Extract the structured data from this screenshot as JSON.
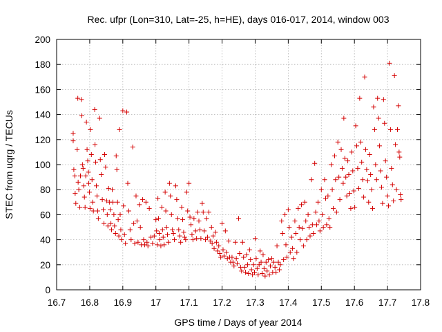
{
  "chart_data": {
    "type": "scatter",
    "title": "Rec. ufpr (Lon=310, Lat=-25, h=HE), days 016-017, 2014, window 003",
    "xlabel": "GPS time / Days of year 2014",
    "ylabel": "STEC from uqrg / TECUs",
    "xlim": [
      16.7,
      17.8
    ],
    "ylim": [
      0,
      200
    ],
    "xticks": [
      "16.7",
      "16.8",
      "16.9",
      "17",
      "17.1",
      "17.2",
      "17.3",
      "17.4",
      "17.5",
      "17.6",
      "17.7",
      "17.8"
    ],
    "yticks": [
      "0",
      "20",
      "40",
      "60",
      "80",
      "100",
      "120",
      "140",
      "160",
      "180",
      "200"
    ],
    "grid": true,
    "marker": "plus",
    "color": "#d40000",
    "points": [
      [
        16.75,
        125
      ],
      [
        16.75,
        119
      ],
      [
        16.752,
        96
      ],
      [
        16.755,
        91
      ],
      [
        16.756,
        77
      ],
      [
        16.758,
        69
      ],
      [
        16.762,
        112
      ],
      [
        16.764,
        153
      ],
      [
        16.765,
        86
      ],
      [
        16.767,
        80
      ],
      [
        16.77,
        66
      ],
      [
        16.772,
        91
      ],
      [
        16.775,
        152
      ],
      [
        16.776,
        139
      ],
      [
        16.778,
        100
      ],
      [
        16.78,
        97
      ],
      [
        16.782,
        83
      ],
      [
        16.784,
        74
      ],
      [
        16.786,
        66
      ],
      [
        16.788,
        91
      ],
      [
        16.79,
        134
      ],
      [
        16.792,
        112
      ],
      [
        16.794,
        103
      ],
      [
        16.796,
        94
      ],
      [
        16.797,
        85
      ],
      [
        16.799,
        78
      ],
      [
        16.801,
        65
      ],
      [
        16.802,
        128
      ],
      [
        16.805,
        108
      ],
      [
        16.807,
        88
      ],
      [
        16.809,
        70
      ],
      [
        16.811,
        63
      ],
      [
        16.815,
        144
      ],
      [
        16.816,
        116
      ],
      [
        16.818,
        102
      ],
      [
        16.82,
        83
      ],
      [
        16.822,
        75
      ],
      [
        16.824,
        63
      ],
      [
        16.826,
        57
      ],
      [
        16.83,
        137
      ],
      [
        16.832,
        104
      ],
      [
        16.835,
        92
      ],
      [
        16.838,
        72
      ],
      [
        16.841,
        64
      ],
      [
        16.843,
        53
      ],
      [
        16.845,
        108
      ],
      [
        16.848,
        98
      ],
      [
        16.851,
        71
      ],
      [
        16.853,
        60
      ],
      [
        16.855,
        51
      ],
      [
        16.857,
        81
      ],
      [
        16.86,
        70
      ],
      [
        16.862,
        64
      ],
      [
        16.864,
        53
      ],
      [
        16.866,
        48
      ],
      [
        16.868,
        80
      ],
      [
        16.87,
        70
      ],
      [
        16.873,
        60
      ],
      [
        16.875,
        51
      ],
      [
        16.878,
        45
      ],
      [
        16.88,
        107
      ],
      [
        16.882,
        96
      ],
      [
        16.884,
        70
      ],
      [
        16.886,
        56
      ],
      [
        16.888,
        43
      ],
      [
        16.89,
        128
      ],
      [
        16.892,
        60
      ],
      [
        16.894,
        48
      ],
      [
        16.896,
        40
      ],
      [
        16.9,
        143
      ],
      [
        16.902,
        67
      ],
      [
        16.905,
        44
      ],
      [
        16.908,
        37
      ],
      [
        16.912,
        142
      ],
      [
        16.915,
        85
      ],
      [
        16.918,
        63
      ],
      [
        16.922,
        48
      ],
      [
        16.925,
        40
      ],
      [
        16.93,
        114
      ],
      [
        16.933,
        53
      ],
      [
        16.936,
        37
      ],
      [
        16.94,
        75
      ],
      [
        16.943,
        55
      ],
      [
        16.946,
        38
      ],
      [
        16.95,
        68
      ],
      [
        16.953,
        50
      ],
      [
        16.956,
        36
      ],
      [
        16.96,
        72
      ],
      [
        16.963,
        40
      ],
      [
        16.966,
        36
      ],
      [
        16.97,
        70
      ],
      [
        16.973,
        38
      ],
      [
        16.976,
        35
      ],
      [
        16.98,
        65
      ],
      [
        16.985,
        42
      ],
      [
        16.99,
        37
      ],
      [
        16.995,
        43
      ],
      [
        17.0,
        56
      ],
      [
        17.002,
        47
      ],
      [
        17.004,
        36
      ],
      [
        17.006,
        73
      ],
      [
        17.008,
        57
      ],
      [
        17.01,
        45
      ],
      [
        17.012,
        40
      ],
      [
        17.015,
        35
      ],
      [
        17.018,
        66
      ],
      [
        17.02,
        48
      ],
      [
        17.022,
        42
      ],
      [
        17.025,
        36
      ],
      [
        17.028,
        78
      ],
      [
        17.03,
        63
      ],
      [
        17.032,
        50
      ],
      [
        17.035,
        44
      ],
      [
        17.038,
        38
      ],
      [
        17.041,
        85
      ],
      [
        17.044,
        75
      ],
      [
        17.047,
        60
      ],
      [
        17.05,
        48
      ],
      [
        17.053,
        45
      ],
      [
        17.056,
        40
      ],
      [
        17.06,
        83
      ],
      [
        17.063,
        72
      ],
      [
        17.066,
        57
      ],
      [
        17.069,
        48
      ],
      [
        17.072,
        43
      ],
      [
        17.075,
        38
      ],
      [
        17.078,
        66
      ],
      [
        17.081,
        56
      ],
      [
        17.084,
        46
      ],
      [
        17.087,
        42
      ],
      [
        17.09,
        40
      ],
      [
        17.093,
        78
      ],
      [
        17.096,
        63
      ],
      [
        17.1,
        85
      ],
      [
        17.103,
        58
      ],
      [
        17.106,
        52
      ],
      [
        17.109,
        44
      ],
      [
        17.112,
        40
      ],
      [
        17.115,
        57
      ],
      [
        17.12,
        47
      ],
      [
        17.123,
        41
      ],
      [
        17.126,
        62
      ],
      [
        17.13,
        55
      ],
      [
        17.133,
        48
      ],
      [
        17.136,
        41
      ],
      [
        17.14,
        69
      ],
      [
        17.143,
        62
      ],
      [
        17.146,
        47
      ],
      [
        17.15,
        40
      ],
      [
        17.153,
        57
      ],
      [
        17.156,
        42
      ],
      [
        17.16,
        62
      ],
      [
        17.164,
        39
      ],
      [
        17.168,
        50
      ],
      [
        17.17,
        37
      ],
      [
        17.173,
        43
      ],
      [
        17.176,
        33
      ],
      [
        17.18,
        46
      ],
      [
        17.183,
        38
      ],
      [
        17.186,
        31
      ],
      [
        17.19,
        35
      ],
      [
        17.193,
        29
      ],
      [
        17.196,
        26
      ],
      [
        17.2,
        53
      ],
      [
        17.203,
        32
      ],
      [
        17.206,
        27
      ],
      [
        17.21,
        47
      ],
      [
        17.213,
        30
      ],
      [
        17.216,
        25
      ],
      [
        17.22,
        39
      ],
      [
        17.223,
        26
      ],
      [
        17.226,
        22
      ],
      [
        17.23,
        26
      ],
      [
        17.233,
        22
      ],
      [
        17.236,
        19
      ],
      [
        17.24,
        38
      ],
      [
        17.243,
        25
      ],
      [
        17.246,
        21
      ],
      [
        17.25,
        57
      ],
      [
        17.253,
        29
      ],
      [
        17.256,
        18
      ],
      [
        17.259,
        15
      ],
      [
        17.262,
        38
      ],
      [
        17.265,
        26
      ],
      [
        17.268,
        18
      ],
      [
        17.271,
        14
      ],
      [
        17.274,
        28
      ],
      [
        17.277,
        20
      ],
      [
        17.28,
        13
      ],
      [
        17.283,
        32
      ],
      [
        17.286,
        24
      ],
      [
        17.289,
        16
      ],
      [
        17.292,
        12
      ],
      [
        17.295,
        20
      ],
      [
        17.298,
        14
      ],
      [
        17.3,
        41
      ],
      [
        17.303,
        25
      ],
      [
        17.306,
        17
      ],
      [
        17.309,
        12
      ],
      [
        17.312,
        20
      ],
      [
        17.315,
        31
      ],
      [
        17.318,
        22
      ],
      [
        17.321,
        13
      ],
      [
        17.324,
        28
      ],
      [
        17.327,
        17
      ],
      [
        17.33,
        11
      ],
      [
        17.333,
        22
      ],
      [
        17.336,
        15
      ],
      [
        17.34,
        24
      ],
      [
        17.343,
        12
      ],
      [
        17.346,
        19
      ],
      [
        17.35,
        25
      ],
      [
        17.353,
        14
      ],
      [
        17.356,
        22
      ],
      [
        17.36,
        18
      ],
      [
        17.363,
        14
      ],
      [
        17.366,
        35
      ],
      [
        17.37,
        22
      ],
      [
        17.373,
        16
      ],
      [
        17.376,
        20
      ],
      [
        17.38,
        55
      ],
      [
        17.383,
        45
      ],
      [
        17.386,
        24
      ],
      [
        17.39,
        60
      ],
      [
        17.393,
        36
      ],
      [
        17.396,
        26
      ],
      [
        17.4,
        64
      ],
      [
        17.403,
        50
      ],
      [
        17.406,
        30
      ],
      [
        17.41,
        42
      ],
      [
        17.413,
        33
      ],
      [
        17.416,
        25
      ],
      [
        17.42,
        55
      ],
      [
        17.423,
        45
      ],
      [
        17.426,
        30
      ],
      [
        17.43,
        65
      ],
      [
        17.433,
        50
      ],
      [
        17.436,
        40
      ],
      [
        17.44,
        68
      ],
      [
        17.443,
        49
      ],
      [
        17.446,
        35
      ],
      [
        17.45,
        70
      ],
      [
        17.453,
        55
      ],
      [
        17.456,
        40
      ],
      [
        17.46,
        60
      ],
      [
        17.463,
        50
      ],
      [
        17.466,
        43
      ],
      [
        17.47,
        88
      ],
      [
        17.473,
        52
      ],
      [
        17.476,
        45
      ],
      [
        17.48,
        101
      ],
      [
        17.483,
        62
      ],
      [
        17.486,
        52
      ],
      [
        17.49,
        70
      ],
      [
        17.493,
        55
      ],
      [
        17.496,
        47
      ],
      [
        17.5,
        80
      ],
      [
        17.503,
        60
      ],
      [
        17.506,
        50
      ],
      [
        17.51,
        88
      ],
      [
        17.513,
        73
      ],
      [
        17.516,
        52
      ],
      [
        17.52,
        75
      ],
      [
        17.523,
        57
      ],
      [
        17.526,
        50
      ],
      [
        17.53,
        100
      ],
      [
        17.533,
        80
      ],
      [
        17.536,
        65
      ],
      [
        17.54,
        107
      ],
      [
        17.543,
        88
      ],
      [
        17.546,
        62
      ],
      [
        17.55,
        118
      ],
      [
        17.553,
        90
      ],
      [
        17.556,
        72
      ],
      [
        17.56,
        112
      ],
      [
        17.563,
        97
      ],
      [
        17.566,
        85
      ],
      [
        17.568,
        137
      ],
      [
        17.571,
        105
      ],
      [
        17.574,
        90
      ],
      [
        17.577,
        75
      ],
      [
        17.58,
        103
      ],
      [
        17.583,
        92
      ],
      [
        17.586,
        77
      ],
      [
        17.589,
        65
      ],
      [
        17.592,
        110
      ],
      [
        17.595,
        95
      ],
      [
        17.598,
        79
      ],
      [
        17.601,
        66
      ],
      [
        17.604,
        131
      ],
      [
        17.607,
        115
      ],
      [
        17.61,
        97
      ],
      [
        17.613,
        81
      ],
      [
        17.616,
        153
      ],
      [
        17.619,
        118
      ],
      [
        17.622,
        102
      ],
      [
        17.625,
        88
      ],
      [
        17.628,
        74
      ],
      [
        17.631,
        170
      ],
      [
        17.634,
        112
      ],
      [
        17.637,
        96
      ],
      [
        17.64,
        87
      ],
      [
        17.643,
        70
      ],
      [
        17.646,
        108
      ],
      [
        17.649,
        92
      ],
      [
        17.652,
        80
      ],
      [
        17.655,
        65
      ],
      [
        17.658,
        146
      ],
      [
        17.661,
        128
      ],
      [
        17.664,
        100
      ],
      [
        17.667,
        88
      ],
      [
        17.67,
        153
      ],
      [
        17.673,
        137
      ],
      [
        17.676,
        115
      ],
      [
        17.679,
        95
      ],
      [
        17.682,
        82
      ],
      [
        17.685,
        69
      ],
      [
        17.688,
        152
      ],
      [
        17.691,
        133
      ],
      [
        17.694,
        103
      ],
      [
        17.697,
        90
      ],
      [
        17.7,
        75
      ],
      [
        17.703,
        67
      ],
      [
        17.706,
        181
      ],
      [
        17.709,
        128
      ],
      [
        17.712,
        97
      ],
      [
        17.715,
        84
      ],
      [
        17.718,
        71
      ],
      [
        17.721,
        171
      ],
      [
        17.724,
        116
      ],
      [
        17.727,
        80
      ],
      [
        17.73,
        128
      ],
      [
        17.733,
        147
      ],
      [
        17.735,
        110
      ],
      [
        17.737,
        106
      ],
      [
        17.739,
        76
      ],
      [
        17.741,
        72
      ]
    ]
  }
}
